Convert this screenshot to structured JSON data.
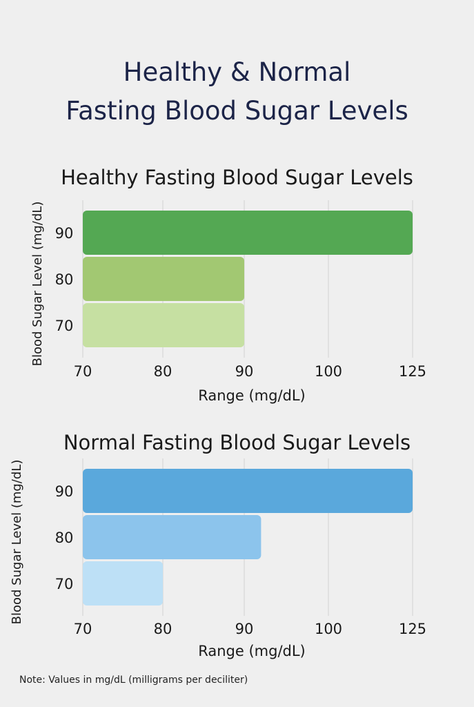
{
  "title_line1": "Healthy & Normal",
  "title_line2": "Fasting Blood Sugar Levels",
  "note": "Note: Values in mg/dL (milligrams per deciliter)",
  "chart_data": [
    {
      "type": "bar",
      "orientation": "horizontal",
      "title": "Healthy Fasting Blood Sugar Levels",
      "xlabel": "Range (mg/dL)",
      "ylabel": "Blood Sugar Level (mg/dL)",
      "x_ticks": [
        "70",
        "80",
        "90",
        "100",
        "125"
      ],
      "categories": [
        "90",
        "80",
        "70"
      ],
      "bars": [
        {
          "category": "90",
          "start": 70,
          "end": 125,
          "color": "#54a853"
        },
        {
          "category": "80",
          "start": 70,
          "end": 90,
          "color": "#a2c872"
        },
        {
          "category": "70",
          "start": 70,
          "end": 90,
          "color": "#c6e0a2"
        }
      ],
      "grid": "vertical"
    },
    {
      "type": "bar",
      "orientation": "horizontal",
      "title": "Normal Fasting Blood Sugar Levels",
      "xlabel": "Range (mg/dL)",
      "ylabel": "Blood Sugar Level (mg/dL)",
      "x_ticks": [
        "70",
        "80",
        "90",
        "100",
        "125"
      ],
      "categories": [
        "90",
        "80",
        "70"
      ],
      "bars": [
        {
          "category": "90",
          "start": 70,
          "end": 125,
          "color": "#5aa8dc"
        },
        {
          "category": "80",
          "start": 70,
          "end": 92,
          "color": "#8cc4ec"
        },
        {
          "category": "70",
          "start": 70,
          "end": 80,
          "color": "#bde0f6"
        }
      ],
      "grid": "vertical"
    }
  ]
}
